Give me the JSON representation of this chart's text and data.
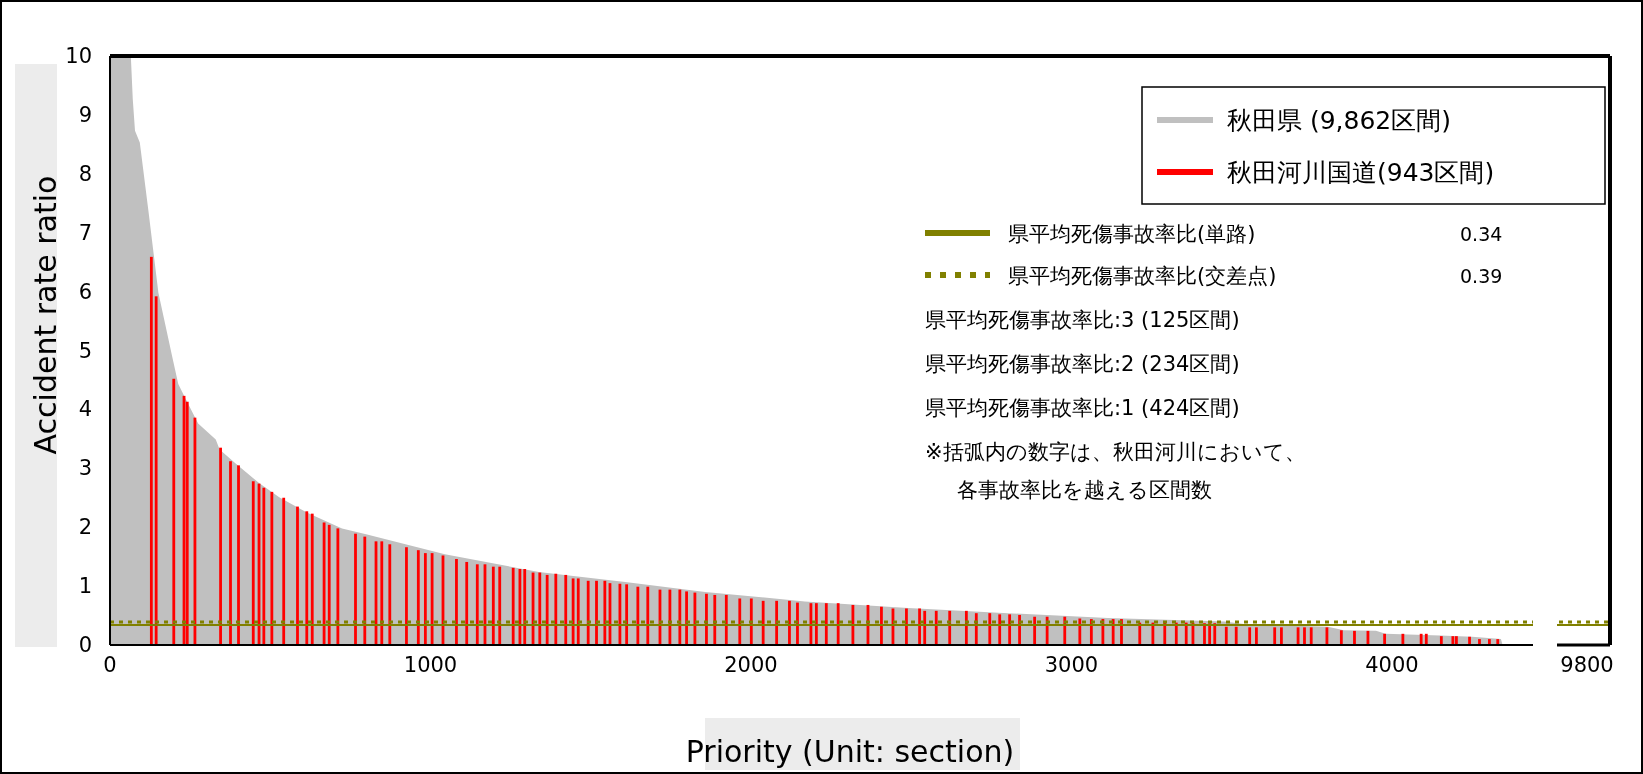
{
  "chart_data": [
    {
      "type": "area",
      "xlabel": "Priority (Unit: section)",
      "ylabel": "Accident rate ratio",
      "legend": "top right",
      "xlim": [
        0,
        4440
      ],
      "xticks": [
        0,
        1000,
        2000,
        3000,
        4000
      ],
      "ylim": [
        0,
        10
      ],
      "yticks": [
        0,
        1,
        2,
        3,
        4,
        5,
        6,
        7,
        8,
        9,
        10
      ],
      "series": [
        {
          "name": "秋田県 (9,862区間)",
          "color": "#c0c0c0",
          "x": [
            0,
            65,
            71,
            78,
            93,
            121,
            151,
            194,
            213,
            244,
            275,
            330,
            342,
            392,
            465,
            528,
            614,
            724,
            799,
            922,
            1045,
            1338,
            1608,
            1857,
            2168,
            2490,
            2802,
            3114,
            3477,
            3550,
            3800,
            3850,
            3950,
            3980,
            4150,
            4250,
            4340,
            4345
          ],
          "values": [
            10,
            10,
            9.27,
            8.73,
            8.53,
            7.32,
            5.98,
            4.9,
            4.43,
            4.09,
            3.76,
            3.49,
            3.32,
            3.08,
            2.75,
            2.51,
            2.25,
            1.98,
            1.88,
            1.71,
            1.54,
            1.24,
            1.07,
            0.9,
            0.74,
            0.63,
            0.54,
            0.46,
            0.4,
            0.35,
            0.31,
            0.25,
            0.24,
            0.19,
            0.16,
            0.14,
            0.1,
            0
          ]
        },
        {
          "name": "秋田河川国道(943区間)",
          "color": "#ff0000",
          "type": "bar",
          "x": [
            129,
            144,
            199,
            231,
            241,
            265,
            345,
            376,
            401,
            447,
            465,
            480,
            505,
            542,
            585,
            614,
            631,
            668,
            684,
            711,
            766,
            795,
            830,
            848,
            873,
            925,
            962,
            984,
            1005,
            1039,
            1081,
            1113,
            1146,
            1170,
            1196,
            1216,
            1258,
            1279,
            1294,
            1320,
            1341,
            1364,
            1391,
            1422,
            1445,
            1461,
            1492,
            1518,
            1544,
            1560,
            1591,
            1612,
            1647,
            1678,
            1716,
            1747,
            1778,
            1799,
            1825,
            1861,
            1887,
            1923,
            1965,
            2001,
            2038,
            2080,
            2120,
            2145,
            2187,
            2204,
            2235,
            2272,
            2318,
            2365,
            2407,
            2443,
            2485,
            2526,
            2542,
            2578,
            2620,
            2672,
            2703,
            2745,
            2776,
            2807,
            2838,
            2885,
            2924,
            2979,
            3026,
            3062,
            3098,
            3130,
            3156,
            3213,
            3254,
            3291,
            3327,
            3358,
            3379,
            3415,
            3431,
            3447,
            3483,
            3514,
            3556,
            3577,
            3634,
            3655,
            3707,
            3727,
            3748,
            3797,
            3842,
            3883,
            3925,
            3977,
            4034,
            4091,
            4107,
            4154,
            4190,
            4201,
            4242,
            4273,
            4304,
            4330
          ],
          "values": [
            6.59,
            5.92,
            4.52,
            4.23,
            4.13,
            3.86,
            3.35,
            3.12,
            3.05,
            2.78,
            2.74,
            2.67,
            2.6,
            2.5,
            2.35,
            2.27,
            2.23,
            2.08,
            2.04,
            1.98,
            1.89,
            1.84,
            1.76,
            1.76,
            1.71,
            1.66,
            1.61,
            1.56,
            1.56,
            1.52,
            1.46,
            1.41,
            1.37,
            1.37,
            1.33,
            1.33,
            1.31,
            1.29,
            1.29,
            1.23,
            1.23,
            1.19,
            1.21,
            1.19,
            1.13,
            1.13,
            1.09,
            1.09,
            1.09,
            1.05,
            1.04,
            1.03,
            0.99,
            0.99,
            0.94,
            0.94,
            0.94,
            0.91,
            0.89,
            0.87,
            0.85,
            0.85,
            0.79,
            0.79,
            0.75,
            0.75,
            0.75,
            0.72,
            0.71,
            0.71,
            0.71,
            0.71,
            0.68,
            0.68,
            0.65,
            0.62,
            0.62,
            0.62,
            0.58,
            0.58,
            0.58,
            0.58,
            0.54,
            0.54,
            0.52,
            0.52,
            0.51,
            0.48,
            0.48,
            0.48,
            0.45,
            0.44,
            0.44,
            0.44,
            0.44,
            0.38,
            0.38,
            0.38,
            0.38,
            0.38,
            0.38,
            0.37,
            0.37,
            0.37,
            0.31,
            0.31,
            0.3,
            0.3,
            0.3,
            0.3,
            0.3,
            0.3,
            0.3,
            0.3,
            0.25,
            0.24,
            0.24,
            0.19,
            0.19,
            0.19,
            0.19,
            0.15,
            0.15,
            0.15,
            0.14,
            0.1,
            0.1,
            0.1
          ]
        }
      ],
      "ref_lines": [
        {
          "axis": "y",
          "value": 0.34,
          "label": "県平均死傷事故率比(単路)",
          "color": "#808000",
          "line_style": "solid"
        },
        {
          "axis": "y",
          "value": 0.39,
          "label": "県平均死傷事故率比(交差点)",
          "color": "#808000",
          "line_style": "dotted"
        }
      ],
      "annotations": [
        "0.34",
        "0.39",
        "県平均死傷事故率比:3 (125区間)",
        "県平均死傷事故率比:2 (234区間)",
        "県平均死傷事故率比:1 (424区間)",
        "※括弧内の数字は、秋田河川において、",
        "各事故率比を越える区間数",
        "9800"
      ]
    }
  ]
}
